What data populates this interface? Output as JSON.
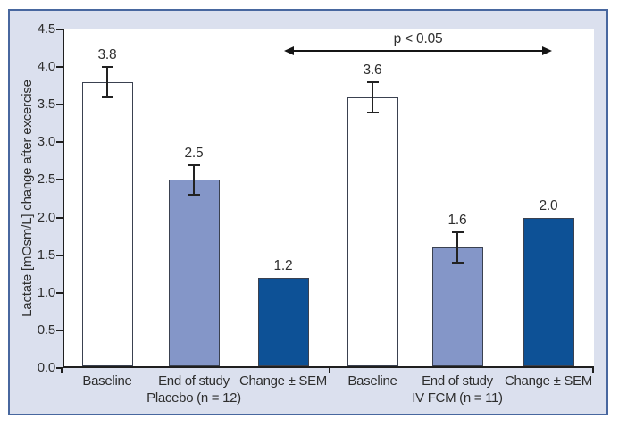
{
  "colors": {
    "panel_background": "#dbe0ee",
    "panel_border": "#48679f",
    "bar_white": "#ffffff",
    "bar_light_blue": "#8496c8",
    "bar_dark_blue": "#0d5196",
    "bar_border": "#3a4150",
    "error_bar": "#222222",
    "axis": "#1f1f1f",
    "text": "#2e2e2e"
  },
  "chart_data": {
    "type": "bar",
    "title": "",
    "xlabel": "",
    "ylabel": "Lactate [mOsm/L] change after excercise",
    "ylim": [
      0.0,
      4.5
    ],
    "ytick_step": 0.5,
    "ytick_labels": [
      "0.0",
      "0.5",
      "1.0",
      "1.5",
      "2.0",
      "2.5",
      "3.0",
      "3.5",
      "4.0",
      "4.5"
    ],
    "grid": false,
    "legend": "none",
    "groups": [
      {
        "label": "Placebo (n = 12)",
        "bars": [
          {
            "category": "Baseline",
            "value": 3.8,
            "value_label": "3.8",
            "sem": 0.2,
            "fill": "white"
          },
          {
            "category": "End of study",
            "value": 2.5,
            "value_label": "2.5",
            "sem": 0.2,
            "fill": "light_blue"
          },
          {
            "category": "Change ± SEM",
            "value": 1.2,
            "value_label": "1.2",
            "sem": null,
            "fill": "dark_blue"
          }
        ]
      },
      {
        "label": "IV FCM (n = 11)",
        "bars": [
          {
            "category": "Baseline",
            "value": 3.6,
            "value_label": "3.6",
            "sem": 0.2,
            "fill": "white"
          },
          {
            "category": "End of study",
            "value": 1.6,
            "value_label": "1.6",
            "sem": 0.2,
            "fill": "light_blue"
          },
          {
            "category": "Change ± SEM",
            "value": 2.0,
            "value_label": "2.0",
            "sem": null,
            "fill": "dark_blue"
          }
        ]
      }
    ],
    "annotation": {
      "text": "p < 0.05",
      "arrow": "double-headed",
      "from_bar": "Change ± SEM (Placebo)",
      "to_bar": "Change ± SEM (IV FCM)"
    }
  }
}
